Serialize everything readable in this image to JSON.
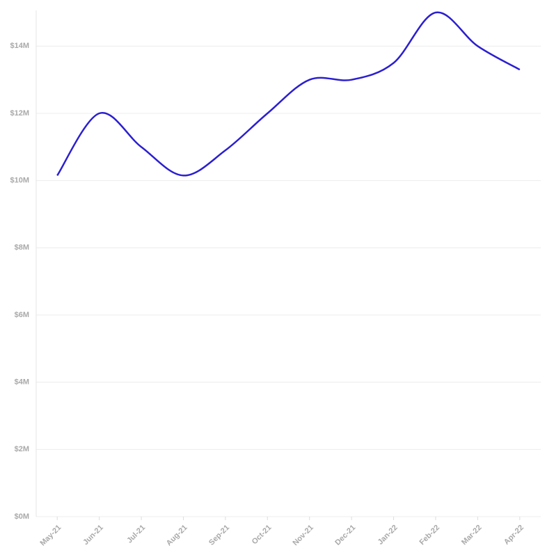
{
  "chart_data": {
    "type": "line",
    "categories": [
      "May-21",
      "Jun-21",
      "Jul-21",
      "Aug-21",
      "Sep-21",
      "Oct-21",
      "Nov-21",
      "Dec-21",
      "Jan-22",
      "Feb-22",
      "Mar-22",
      "Apr-22"
    ],
    "series": [
      {
        "color": "#2b1fcf",
        "values": [
          10150000,
          12000000,
          11000000,
          10150000,
          10900000,
          12000000,
          13000000,
          13000000,
          13500000,
          15000000,
          14000000,
          13300000
        ]
      }
    ],
    "ylim": [
      0,
      15000000
    ],
    "yticks": [
      {
        "value": 0,
        "label": "$0M"
      },
      {
        "value": 2000000,
        "label": "$2M"
      },
      {
        "value": 4000000,
        "label": "$4M"
      },
      {
        "value": 6000000,
        "label": "$6M"
      },
      {
        "value": 8000000,
        "label": "$8M"
      },
      {
        "value": 10000000,
        "label": "$10M"
      },
      {
        "value": 12000000,
        "label": "$12M"
      },
      {
        "value": 14000000,
        "label": "$14M"
      }
    ],
    "grid": true
  }
}
